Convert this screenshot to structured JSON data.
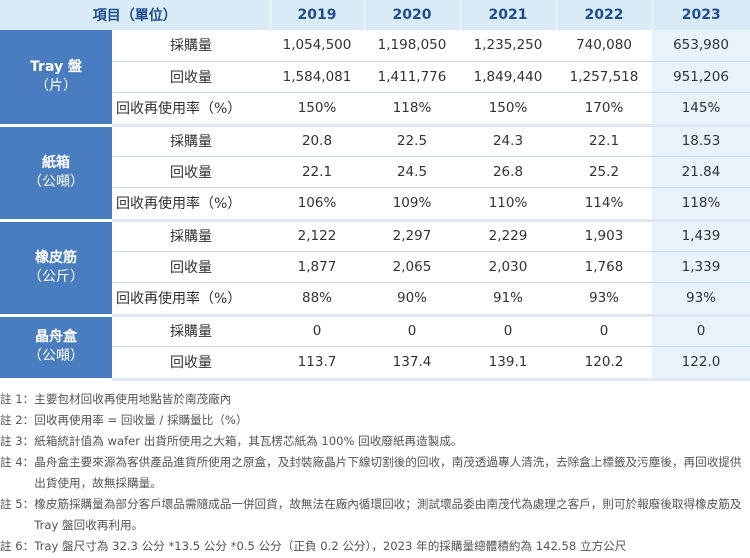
{
  "header": {
    "item_label": "項目（單位）",
    "years": [
      "2019",
      "2020",
      "2021",
      "2022",
      "2023"
    ]
  },
  "categories": [
    {
      "name": "Tray 盤",
      "unit": "（片）",
      "rows": [
        {
          "label": "採購量",
          "values": [
            "1,054,500",
            "1,198,050",
            "1,235,250",
            "740,080",
            "653,980"
          ]
        },
        {
          "label": "回收量",
          "values": [
            "1,584,081",
            "1,411,776",
            "1,849,440",
            "1,257,518",
            "951,206"
          ]
        },
        {
          "label": "回收再使用率（%）",
          "values": [
            "150%",
            "118%",
            "150%",
            "170%",
            "145%"
          ]
        }
      ]
    },
    {
      "name": "紙箱",
      "unit": "（公噸）",
      "rows": [
        {
          "label": "採購量",
          "values": [
            "20.8",
            "22.5",
            "24.3",
            "22.1",
            "18.53"
          ]
        },
        {
          "label": "回收量",
          "values": [
            "22.1",
            "24.5",
            "26.8",
            "25.2",
            "21.84"
          ]
        },
        {
          "label": "回收再使用率（%）",
          "values": [
            "106%",
            "109%",
            "110%",
            "114%",
            "118%"
          ]
        }
      ]
    },
    {
      "name": "橡皮筋",
      "unit": "（公斤）",
      "rows": [
        {
          "label": "採購量",
          "values": [
            "2,122",
            "2,297",
            "2,229",
            "1,903",
            "1,439"
          ]
        },
        {
          "label": "回收量",
          "values": [
            "1,877",
            "2,065",
            "2,030",
            "1,768",
            "1,339"
          ]
        },
        {
          "label": "回收再使用率（%）",
          "values": [
            "88%",
            "90%",
            "91%",
            "93%",
            "93%"
          ]
        }
      ]
    },
    {
      "name": "晶舟盒",
      "unit": "（公噸）",
      "rows": [
        {
          "label": "採購量",
          "values": [
            "0",
            "0",
            "0",
            "0",
            "0"
          ]
        },
        {
          "label": "回收量",
          "values": [
            "113.7",
            "137.4",
            "139.1",
            "120.2",
            "122.0"
          ]
        }
      ]
    }
  ],
  "notes": [
    {
      "key": "註 1：",
      "text": "主要包材回收再使用地點皆於南茂廠內"
    },
    {
      "key": "註 2：",
      "text": "回收再使用率 = 回收量 / 採購量比（%）"
    },
    {
      "key": "註 3：",
      "text": "紙箱統計值為 wafer 出貨所使用之大箱，其瓦楞芯紙為 100% 回收廢紙再造製成。"
    },
    {
      "key": "註 4：",
      "text": "晶舟盒主要來源為客供產品進貨所使用之原盒，及封裝廠晶片下線切割後的回收，南茂透過專人清洗，去除盒上標籤及污塵後，再回收提供出貨使用，故無採購量。"
    },
    {
      "key": "註 5：",
      "text": "橡皮筋採購量為部分客戶壞品需隨成品一併回貨，故無法在廠內循環回收；測試壞品委由南茂代為處理之客戶，則可於報廢後取得橡皮筋及 Tray 盤回收再利用。"
    },
    {
      "key": "註 6：",
      "text": "Tray 盤尺寸為 32.3 公分 *13.5 公分 *0.5 公分（正負 0.2 公分），2023 年的採購量總體積約為 142.58 立方公尺"
    }
  ],
  "colors": {
    "header_bg": "#d9ebf7",
    "header_text": "#1e4e90",
    "category_bg": "#4a7dbf",
    "highlight_2023": "#e8f2fb"
  }
}
